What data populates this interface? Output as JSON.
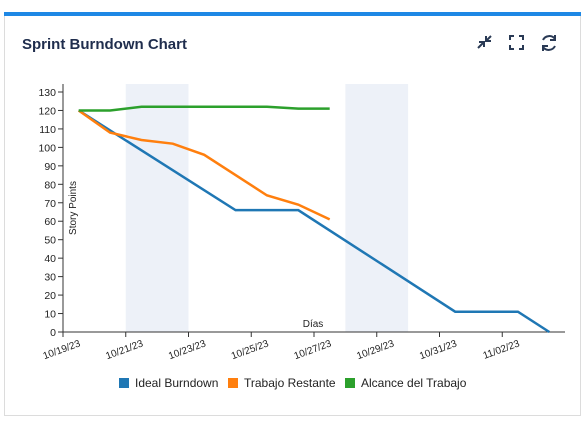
{
  "header": {
    "title": "Sprint Burndown Chart"
  },
  "chart_data": {
    "type": "line",
    "xlabel": "Días",
    "ylabel": "Story Points",
    "xlim": [
      0,
      16
    ],
    "ylim": [
      0,
      130
    ],
    "xticks": [
      {
        "value": 0,
        "label": "10/19/23"
      },
      {
        "value": 2,
        "label": "10/21/23"
      },
      {
        "value": 4,
        "label": "10/23/23"
      },
      {
        "value": 6,
        "label": "10/25/23"
      },
      {
        "value": 8,
        "label": "10/27/23"
      },
      {
        "value": 10,
        "label": "10/29/23"
      },
      {
        "value": 12,
        "label": "10/31/23"
      },
      {
        "value": 14,
        "label": "11/02/23"
      }
    ],
    "yticks": [
      0,
      10,
      20,
      30,
      40,
      50,
      60,
      70,
      80,
      90,
      100,
      110,
      120,
      130
    ],
    "shaded_ranges": [
      [
        2,
        4
      ],
      [
        9,
        11
      ]
    ],
    "shade_color": "#edf1f8",
    "series": [
      {
        "name": "Ideal Burndown",
        "color": "#1f77b4",
        "x": [
          0.5,
          5.5,
          7.5,
          12.5,
          14.5,
          15.5
        ],
        "values": [
          120,
          66,
          66,
          11,
          11,
          0
        ]
      },
      {
        "name": "Trabajo Restante",
        "color": "#ff7f0e",
        "x": [
          0.5,
          1.5,
          2.5,
          3.5,
          4.5,
          5.5,
          6.5,
          7.5,
          8.5
        ],
        "values": [
          120,
          108,
          104,
          102,
          96,
          85,
          74,
          69,
          61
        ]
      },
      {
        "name": "Alcance del Trabajo",
        "color": "#2ca02c",
        "x": [
          0.5,
          1.5,
          2.5,
          3.5,
          4.5,
          5.5,
          6.5,
          7.5,
          8.5
        ],
        "values": [
          120,
          120,
          122,
          122,
          122,
          122,
          122,
          121,
          121
        ]
      }
    ],
    "legend": "bottom"
  }
}
